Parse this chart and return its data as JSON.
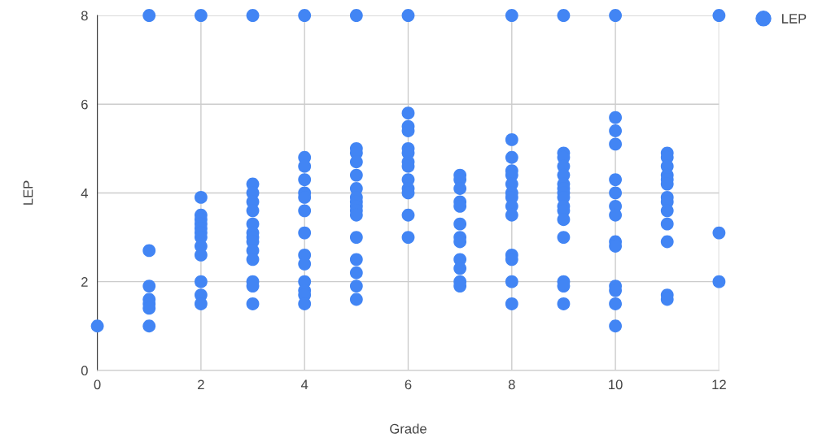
{
  "chart_data": {
    "type": "scatter",
    "xlabel": "Grade",
    "ylabel": "LEP",
    "xlim": [
      0,
      12
    ],
    "ylim": [
      0,
      8
    ],
    "xticks": [
      0,
      2,
      4,
      6,
      8,
      10,
      12
    ],
    "yticks": [
      0,
      2,
      4,
      6,
      8
    ],
    "grid": true,
    "legend": "top right",
    "marker": "circle",
    "series": [
      {
        "name": "LEP",
        "color": "#4285f4",
        "x": [
          0,
          1,
          1,
          1,
          1,
          1,
          1,
          1,
          2,
          2,
          2,
          2,
          2,
          2,
          2,
          2,
          2,
          2,
          2,
          2,
          2,
          3,
          3,
          3,
          3,
          3,
          3,
          3,
          3,
          3,
          3,
          3,
          3,
          3,
          3,
          4,
          4,
          4,
          4,
          4,
          4,
          4,
          4,
          4,
          4,
          4,
          4,
          4,
          4,
          5,
          5,
          5,
          5,
          5,
          5,
          5,
          5,
          5,
          5,
          5,
          5,
          5,
          5,
          5,
          5,
          6,
          6,
          6,
          6,
          6,
          6,
          6,
          6,
          6,
          6,
          6,
          6,
          6,
          7,
          7,
          7,
          7,
          7,
          7,
          7,
          7,
          7,
          7,
          7,
          7,
          8,
          8,
          8,
          8,
          8,
          8,
          8,
          8,
          8,
          8,
          8,
          8,
          8,
          8,
          9,
          9,
          9,
          9,
          9,
          9,
          9,
          9,
          9,
          9,
          9,
          9,
          9,
          9,
          9,
          9,
          10,
          10,
          10,
          10,
          10,
          10,
          10,
          10,
          10,
          10,
          10,
          10,
          10,
          10,
          11,
          11,
          11,
          11,
          11,
          11,
          11,
          11,
          11,
          11,
          11,
          11,
          11,
          12,
          12,
          12
        ],
        "values": [
          1,
          8,
          2.7,
          1.9,
          1.6,
          1.5,
          1.4,
          1.0,
          8,
          3.9,
          3.5,
          3.4,
          3.3,
          3.2,
          3.1,
          3.0,
          2.8,
          2.6,
          2.0,
          1.7,
          1.5,
          8,
          4.2,
          4.0,
          3.8,
          3.6,
          3.3,
          3.1,
          3.0,
          2.9,
          2.7,
          2.5,
          2.0,
          1.9,
          1.5,
          8,
          4.8,
          4.6,
          4.3,
          4.0,
          3.9,
          3.6,
          3.1,
          2.6,
          2.4,
          2.0,
          1.8,
          1.7,
          1.5,
          8,
          5.0,
          4.9,
          4.7,
          4.4,
          4.1,
          3.9,
          3.8,
          3.7,
          3.6,
          3.5,
          3.0,
          2.5,
          2.2,
          1.9,
          1.6,
          8,
          5.8,
          5.5,
          5.4,
          5.0,
          4.9,
          4.7,
          4.6,
          4.3,
          4.1,
          4.0,
          3.5,
          3.0,
          4.4,
          4.3,
          4.1,
          3.8,
          3.7,
          3.3,
          3.0,
          2.9,
          2.5,
          2.3,
          2.0,
          1.9,
          8,
          5.2,
          4.8,
          4.5,
          4.4,
          4.2,
          4.0,
          3.9,
          3.7,
          3.5,
          2.6,
          2.5,
          2.0,
          1.5,
          8,
          4.9,
          4.8,
          4.6,
          4.4,
          4.2,
          4.1,
          4.0,
          3.9,
          3.7,
          3.6,
          3.4,
          3.0,
          2.0,
          1.9,
          1.5,
          8,
          5.7,
          5.4,
          5.1,
          4.3,
          4.0,
          3.7,
          3.5,
          2.9,
          2.8,
          1.9,
          1.8,
          1.5,
          1.0,
          4.9,
          4.8,
          4.6,
          4.4,
          4.3,
          4.2,
          3.9,
          3.8,
          3.6,
          3.3,
          2.9,
          1.7,
          1.6,
          8,
          3.1,
          2.0
        ]
      }
    ]
  }
}
